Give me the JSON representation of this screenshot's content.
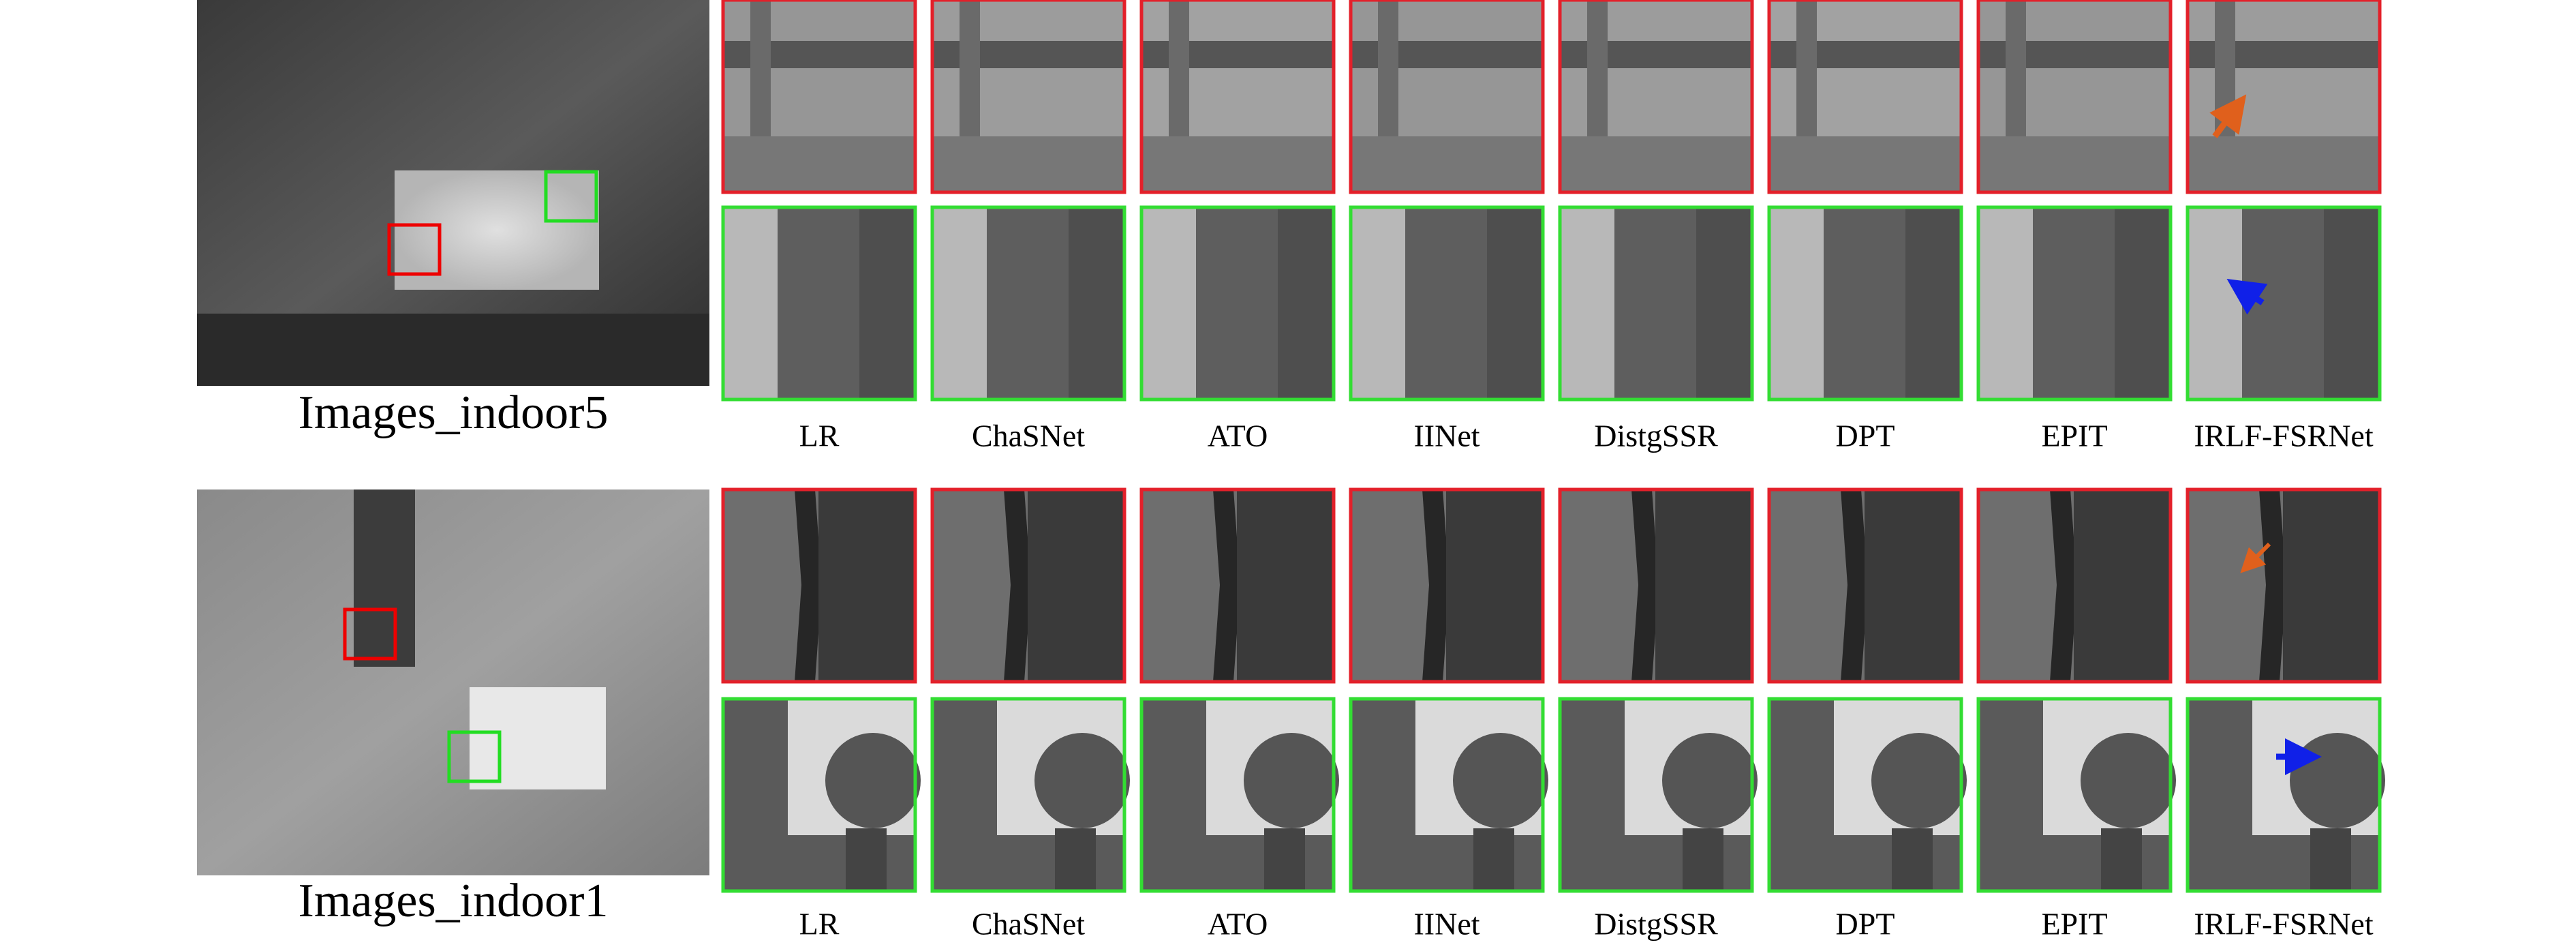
{
  "rows": [
    {
      "scene": "Images_indoor5",
      "methods": [
        "LR",
        "ChaSNet",
        "ATO",
        "IINet",
        "DistgSSR",
        "DPT",
        "EPIT",
        "IRLF-FSRNet"
      ]
    },
    {
      "scene": "Images_indoor1",
      "methods": [
        "LR",
        "ChaSNet",
        "ATO",
        "IINet",
        "DistgSSR",
        "DPT",
        "EPIT",
        "IRLF-FSRNet"
      ]
    }
  ]
}
